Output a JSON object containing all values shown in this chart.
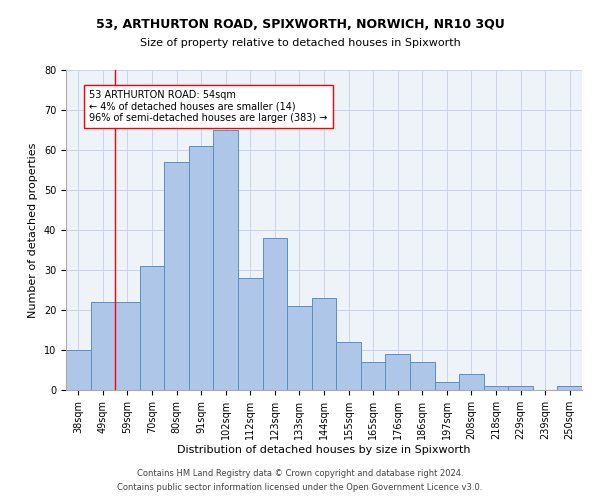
{
  "title1": "53, ARTHURTON ROAD, SPIXWORTH, NORWICH, NR10 3QU",
  "title2": "Size of property relative to detached houses in Spixworth",
  "xlabel": "Distribution of detached houses by size in Spixworth",
  "ylabel": "Number of detached properties",
  "bar_labels": [
    "38sqm",
    "49sqm",
    "59sqm",
    "70sqm",
    "80sqm",
    "91sqm",
    "102sqm",
    "112sqm",
    "123sqm",
    "133sqm",
    "144sqm",
    "155sqm",
    "165sqm",
    "176sqm",
    "186sqm",
    "197sqm",
    "208sqm",
    "218sqm",
    "229sqm",
    "239sqm",
    "250sqm"
  ],
  "bar_values": [
    10,
    22,
    22,
    31,
    57,
    61,
    65,
    28,
    38,
    21,
    23,
    12,
    7,
    9,
    7,
    2,
    4,
    1,
    1,
    0,
    1
  ],
  "bar_color": "#aec6e8",
  "bar_edge_color": "#5a8fc2",
  "annotation_line1": "53 ARTHURTON ROAD: 54sqm",
  "annotation_line2": "← 4% of detached houses are smaller (14)",
  "annotation_line3": "96% of semi-detached houses are larger (383) →",
  "redline_x": 1.5,
  "ylim": [
    0,
    80
  ],
  "yticks": [
    0,
    10,
    20,
    30,
    40,
    50,
    60,
    70,
    80
  ],
  "footer1": "Contains HM Land Registry data © Crown copyright and database right 2024.",
  "footer2": "Contains public sector information licensed under the Open Government Licence v3.0.",
  "bg_color": "#eef2f9",
  "grid_color": "#c8d4e8",
  "title1_fontsize": 9,
  "title2_fontsize": 8,
  "ylabel_fontsize": 8,
  "xlabel_fontsize": 8,
  "tick_fontsize": 7,
  "annot_fontsize": 7,
  "footer_fontsize": 6
}
